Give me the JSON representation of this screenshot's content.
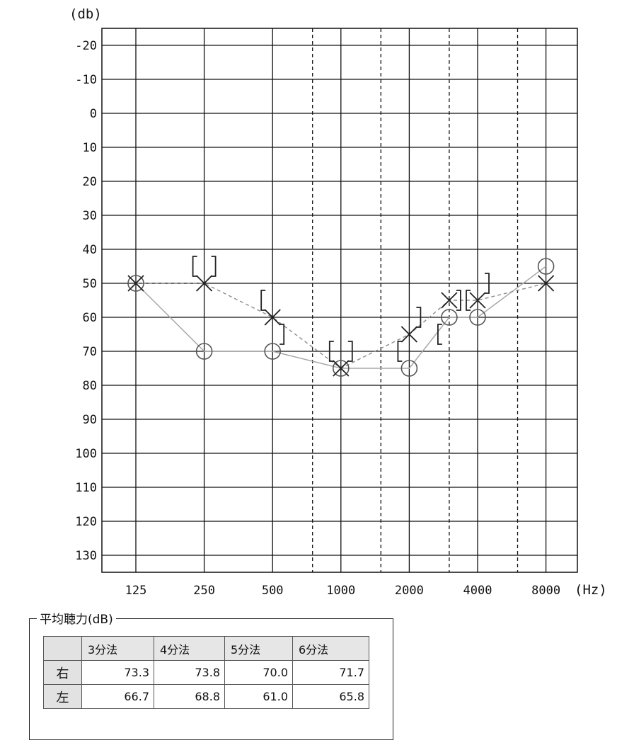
{
  "chart_data": {
    "type": "scatter",
    "y_unit": "(db)",
    "x_unit": "(Hz)",
    "x_tick_labels": [
      "125",
      "250",
      "500",
      "1000",
      "2000",
      "4000",
      "8000"
    ],
    "y_tick_labels": [
      "-20",
      "-10",
      "0",
      "10",
      "20",
      "30",
      "40",
      "50",
      "60",
      "70",
      "80",
      "90",
      "100",
      "110",
      "120",
      "130"
    ],
    "ylim": [
      -25,
      135
    ],
    "y_inverted": true,
    "x_scale": "log2",
    "series": [
      {
        "marker": "circle",
        "color": "#999999",
        "points": [
          [
            125,
            50
          ],
          [
            250,
            70
          ],
          [
            500,
            70
          ],
          [
            1000,
            75
          ],
          [
            2000,
            75
          ],
          [
            3000,
            60
          ],
          [
            4000,
            60
          ],
          [
            8000,
            45
          ]
        ]
      },
      {
        "marker": "cross",
        "color": "#888888",
        "points": [
          [
            125,
            50
          ],
          [
            250,
            50
          ],
          [
            500,
            60
          ],
          [
            1000,
            75
          ],
          [
            2000,
            65
          ],
          [
            3000,
            55
          ],
          [
            4000,
            55
          ],
          [
            8000,
            50
          ]
        ]
      },
      {
        "marker": "bracket-left",
        "points": [
          [
            250,
            45
          ],
          [
            500,
            55
          ],
          [
            1000,
            70
          ],
          [
            2000,
            70
          ],
          [
            3000,
            65
          ],
          [
            4000,
            55
          ]
        ]
      },
      {
        "marker": "bracket-right",
        "points": [
          [
            250,
            45
          ],
          [
            500,
            65
          ],
          [
            1000,
            70
          ],
          [
            2000,
            60
          ],
          [
            3000,
            55
          ],
          [
            4000,
            50
          ]
        ]
      }
    ]
  },
  "average": {
    "legend": "平均聴力(dB)",
    "columns": [
      "3分法",
      "4分法",
      "5分法",
      "6分法"
    ],
    "rows": [
      {
        "label": "右",
        "values": [
          "73.3",
          "73.8",
          "70.0",
          "71.7"
        ]
      },
      {
        "label": "左",
        "values": [
          "66.7",
          "68.8",
          "61.0",
          "65.8"
        ]
      }
    ]
  }
}
